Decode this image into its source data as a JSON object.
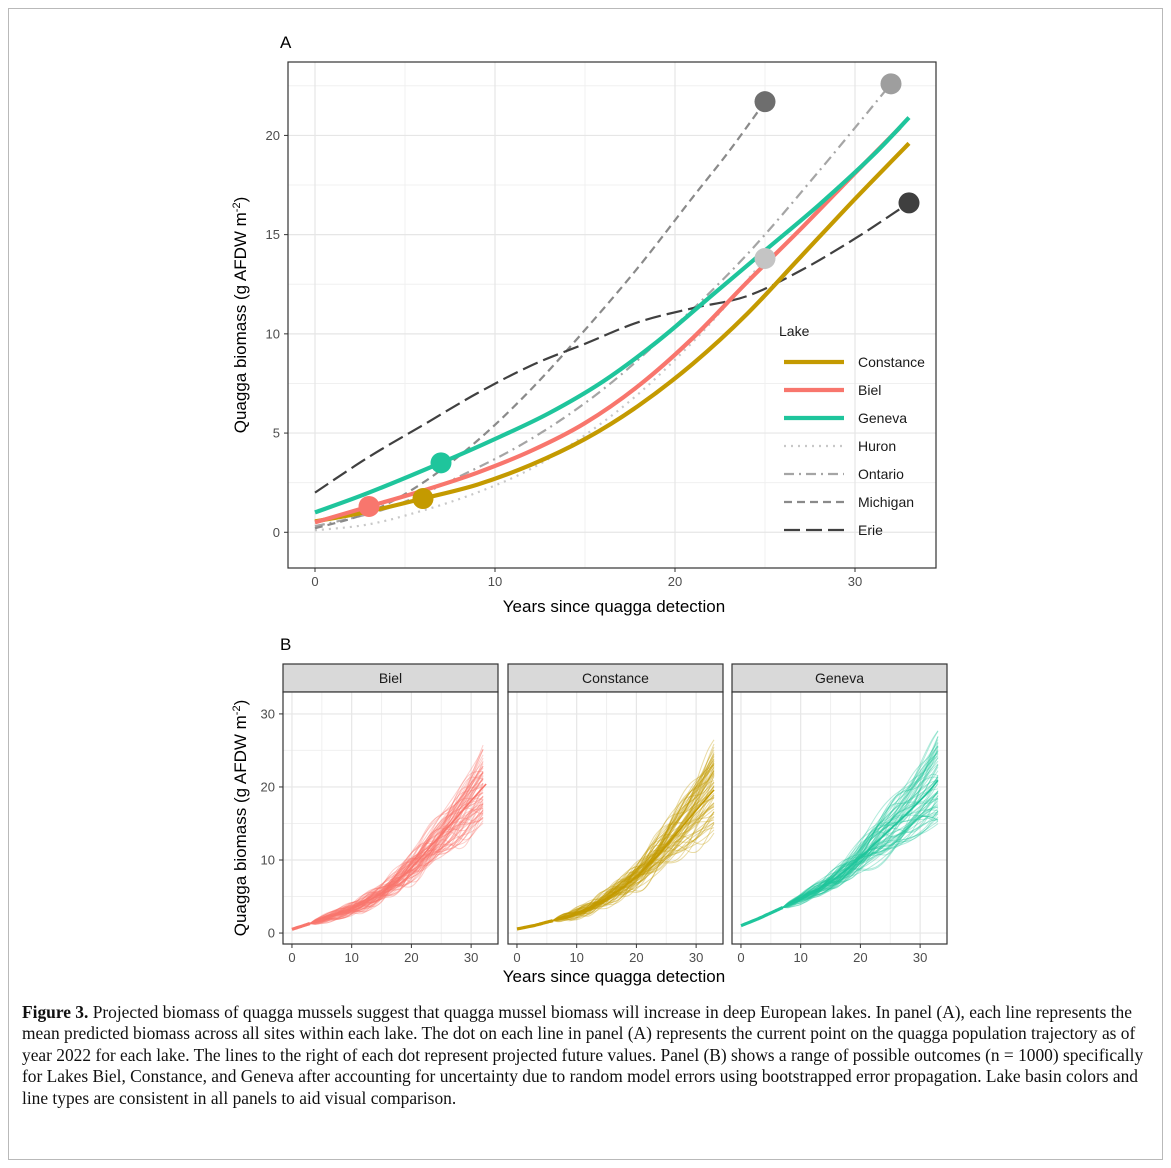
{
  "figure": {
    "caption_label": "Figure 3.",
    "caption_text": " Projected biomass of quagga mussels suggest that quagga mussel biomass will increase in deep European lakes. In panel (A), each line represents the mean predicted biomass across all sites within each lake. The dot on each line in panel (A) represents the current point on the quagga population trajectory as of year 2022 for each lake. The lines to the right of each dot represent projected future values. Panel (B) shows a range of possible outcomes (n = 1000) specifically for Lakes Biel, Constance, and Geneva after accounting for uncertainty due to random model errors using bootstrapped error propagation. Lake basin colors and line types are consistent in all panels to aid visual comparison."
  },
  "colors": {
    "Constance": "#c49a00",
    "Biel": "#f8766d",
    "Geneva": "#1fc59c",
    "Huron": "#c8c8c8",
    "Ontario": "#a5a5a5",
    "Michigan": "#8a8a8a",
    "Erie": "#404040",
    "dot_Huron": "#c4c4c4",
    "dot_Ontario": "#9e9e9e",
    "dot_Michigan": "#6e6e6e",
    "dot_Erie": "#3f3f3f"
  },
  "chart_data": [
    {
      "panel": "A",
      "type": "line",
      "xlabel": "Years since quagga detection",
      "ylabel": "Quagga biomass (g AFDW m⁻²)",
      "xlim": [
        -1.5,
        34.5
      ],
      "ylim": [
        -1.8,
        23.7
      ],
      "xticks": [
        0,
        10,
        20,
        30
      ],
      "yticks": [
        0,
        5,
        10,
        15,
        20
      ],
      "grid": true,
      "legend_title": "Lake",
      "legend_position": "right-inside",
      "series": [
        {
          "name": "Constance",
          "linetype": "solid",
          "x": [
            0,
            3,
            6,
            9,
            12,
            15,
            18,
            21,
            24,
            27,
            30,
            33
          ],
          "y": [
            0.55,
            1.05,
            1.7,
            2.4,
            3.4,
            4.7,
            6.4,
            8.5,
            11.0,
            13.9,
            16.8,
            19.6
          ],
          "dot": [
            6,
            1.7
          ]
        },
        {
          "name": "Biel",
          "linetype": "solid",
          "x": [
            0,
            3,
            6,
            9,
            12,
            15,
            18,
            21,
            24,
            27,
            30,
            32.5
          ],
          "y": [
            0.5,
            1.3,
            2.1,
            3.0,
            4.1,
            5.5,
            7.4,
            9.8,
            12.6,
            15.3,
            18.1,
            20.4
          ],
          "dot": [
            3,
            1.3
          ]
        },
        {
          "name": "Geneva",
          "linetype": "solid",
          "x": [
            0,
            3,
            7,
            10,
            13,
            16,
            19,
            22,
            25,
            28,
            31,
            33
          ],
          "y": [
            1.0,
            2.0,
            3.5,
            4.7,
            6.0,
            7.6,
            9.6,
            11.9,
            14.2,
            16.5,
            19.0,
            20.9
          ],
          "dot": [
            7,
            3.5
          ]
        },
        {
          "name": "Huron",
          "linetype": "dotted",
          "x": [
            0,
            3,
            6,
            9,
            12,
            15,
            18,
            21,
            23,
            25
          ],
          "y": [
            0.1,
            0.4,
            1.1,
            2.0,
            3.2,
            4.9,
            7.0,
            9.6,
            11.6,
            13.8
          ],
          "dot": [
            25,
            13.8
          ]
        },
        {
          "name": "Ontario",
          "linetype": "dotdash",
          "x": [
            0,
            4,
            8,
            12,
            16,
            20,
            24,
            28,
            32
          ],
          "y": [
            0.3,
            1.2,
            2.8,
            4.7,
            7.2,
            10.4,
            14.0,
            18.2,
            22.6
          ],
          "dot": [
            32,
            22.6
          ]
        },
        {
          "name": "Michigan",
          "linetype": "dashed",
          "x": [
            0,
            3,
            6,
            9,
            12,
            15,
            18,
            21,
            23,
            25
          ],
          "y": [
            0.2,
            1.0,
            2.5,
            4.6,
            7.2,
            10.2,
            13.4,
            16.9,
            19.2,
            21.7
          ],
          "dot": [
            25,
            21.7
          ]
        },
        {
          "name": "Erie",
          "linetype": "longdash",
          "x": [
            0,
            3,
            6,
            9,
            12,
            15,
            18,
            21,
            24,
            27,
            30,
            33
          ],
          "y": [
            2.0,
            3.8,
            5.4,
            7.0,
            8.4,
            9.5,
            10.6,
            11.3,
            11.9,
            13.2,
            14.8,
            16.6
          ],
          "dot": [
            33,
            16.6
          ]
        }
      ]
    },
    {
      "panel": "B",
      "type": "line",
      "xlabel": "Years since quagga detection",
      "ylabel": "Quagga biomass (g AFDW m⁻²)",
      "xlim": [
        -1.5,
        34.5
      ],
      "ylim": [
        -1.5,
        33
      ],
      "xticks": [
        0,
        10,
        20,
        30
      ],
      "yticks": [
        0,
        10,
        20,
        30
      ],
      "grid": true,
      "facets": [
        {
          "name": "Biel",
          "start": 3,
          "x": [
            0,
            3,
            6,
            9,
            12,
            15,
            18,
            21,
            24,
            27,
            30,
            32.5
          ],
          "y_mean": [
            0.5,
            1.3,
            2.1,
            3.0,
            4.1,
            5.5,
            7.4,
            9.8,
            12.6,
            15.3,
            18.1,
            20.4
          ],
          "spread_end": 5.5
        },
        {
          "name": "Constance",
          "start": 6,
          "x": [
            0,
            3,
            6,
            9,
            12,
            15,
            18,
            21,
            24,
            27,
            30,
            33
          ],
          "y_mean": [
            0.55,
            1.05,
            1.7,
            2.4,
            3.4,
            4.7,
            6.4,
            8.5,
            11.0,
            13.9,
            16.8,
            19.6
          ],
          "spread_end": 5.0
        },
        {
          "name": "Geneva",
          "start": 7,
          "x": [
            0,
            3,
            7,
            10,
            13,
            16,
            19,
            22,
            25,
            28,
            31,
            33
          ],
          "y_mean": [
            1.0,
            2.0,
            3.5,
            4.7,
            6.0,
            7.6,
            9.6,
            11.9,
            14.2,
            16.5,
            19.0,
            20.9
          ],
          "spread_end": 6.0
        }
      ]
    }
  ]
}
